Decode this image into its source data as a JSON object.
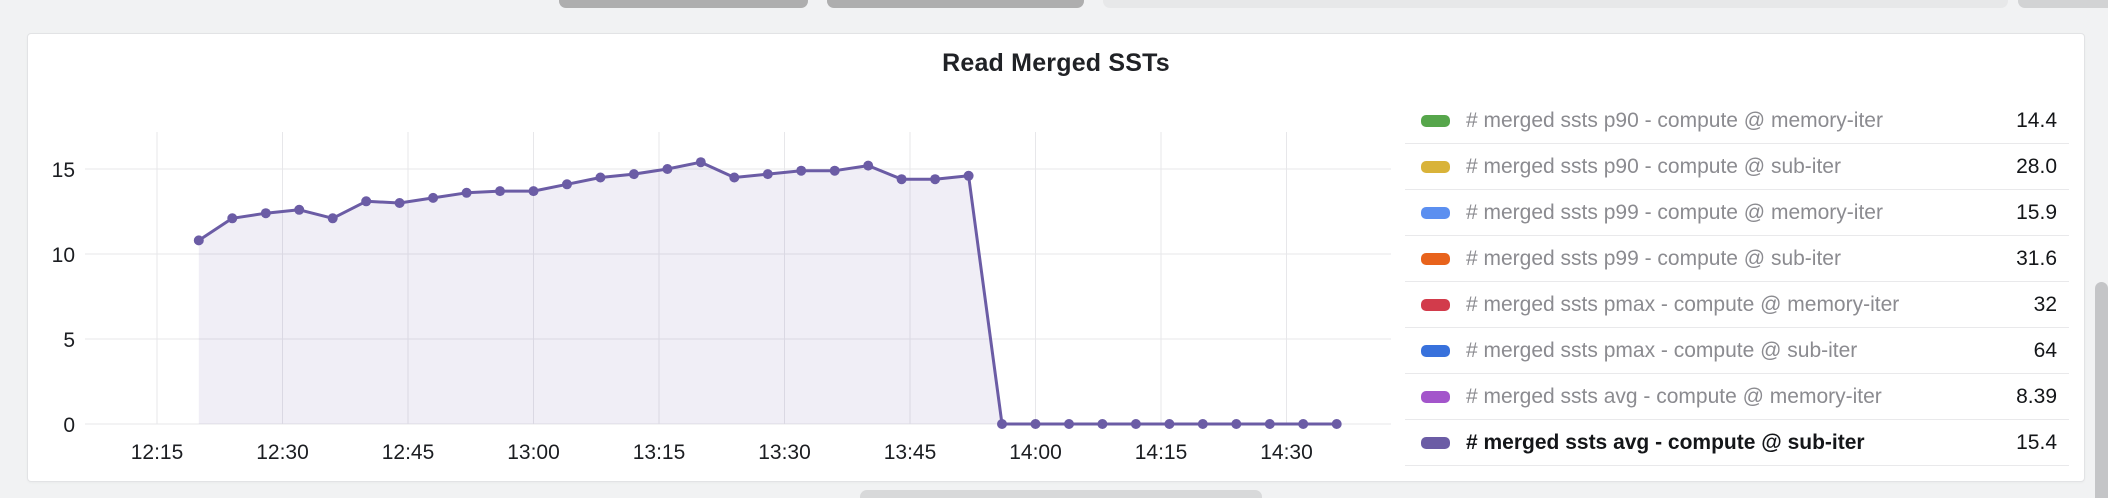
{
  "panel": {
    "title": "Read Merged SSTs"
  },
  "chart_data": {
    "type": "area",
    "title": "Read Merged SSTs",
    "xlabel": "",
    "ylabel": "",
    "grid": true,
    "legend_position": "right",
    "ylim": [
      0,
      17.2
    ],
    "y_tick_labels": [
      "0",
      "5",
      "10",
      "15"
    ],
    "y_tick_values": [
      0,
      5,
      10,
      15
    ],
    "x_tick_labels": [
      "12:15",
      "12:30",
      "12:45",
      "13:00",
      "13:15",
      "13:30",
      "13:45",
      "14:00",
      "14:15",
      "14:30"
    ],
    "series": [
      {
        "name": "# merged ssts avg - compute @ sub-iter",
        "color": "#6b5ca5",
        "fill_color": "rgba(107,92,165,0.10)",
        "points": [
          [
            "12:20",
            10.8
          ],
          [
            "12:24",
            12.1
          ],
          [
            "12:28",
            12.4
          ],
          [
            "12:32",
            12.6
          ],
          [
            "12:36",
            12.1
          ],
          [
            "12:40",
            13.1
          ],
          [
            "12:44",
            13.0
          ],
          [
            "12:48",
            13.3
          ],
          [
            "12:52",
            13.6
          ],
          [
            "12:56",
            13.7
          ],
          [
            "13:00",
            13.7
          ],
          [
            "13:04",
            14.1
          ],
          [
            "13:08",
            14.5
          ],
          [
            "13:12",
            14.7
          ],
          [
            "13:16",
            15.0
          ],
          [
            "13:20",
            15.4
          ],
          [
            "13:24",
            14.5
          ],
          [
            "13:28",
            14.7
          ],
          [
            "13:32",
            14.9
          ],
          [
            "13:36",
            14.9
          ],
          [
            "13:40",
            15.2
          ],
          [
            "13:44",
            14.4
          ],
          [
            "13:48",
            14.4
          ],
          [
            "13:52",
            14.6
          ],
          [
            "13:56",
            0
          ],
          [
            "14:00",
            0
          ],
          [
            "14:04",
            0
          ],
          [
            "14:08",
            0
          ],
          [
            "14:12",
            0
          ],
          [
            "14:16",
            0
          ],
          [
            "14:20",
            0
          ],
          [
            "14:24",
            0
          ],
          [
            "14:28",
            0
          ],
          [
            "14:32",
            0
          ],
          [
            "14:36",
            0
          ]
        ]
      }
    ]
  },
  "legend": {
    "rows": [
      {
        "label": "# merged ssts p90 - compute @ memory-iter",
        "value": "14.4",
        "color": "#56a64b",
        "highlighted": false
      },
      {
        "label": "# merged ssts p90 - compute @ sub-iter",
        "value": "28.0",
        "color": "#d9b339",
        "highlighted": false
      },
      {
        "label": "# merged ssts p99 - compute @ memory-iter",
        "value": "15.9",
        "color": "#5b8ff0",
        "highlighted": false
      },
      {
        "label": "# merged ssts p99 - compute @ sub-iter",
        "value": "31.6",
        "color": "#e8631c",
        "highlighted": false
      },
      {
        "label": "# merged ssts pmax - compute @ memory-iter",
        "value": "32",
        "color": "#d23b4b",
        "highlighted": false
      },
      {
        "label": "# merged ssts pmax - compute @ sub-iter",
        "value": "64",
        "color": "#3871dc",
        "highlighted": false
      },
      {
        "label": "# merged ssts avg - compute @ memory-iter",
        "value": "8.39",
        "color": "#a355cb",
        "highlighted": false
      },
      {
        "label": "# merged ssts avg - compute @ sub-iter",
        "value": "15.4",
        "color": "#6b5ca5",
        "highlighted": true
      }
    ]
  }
}
